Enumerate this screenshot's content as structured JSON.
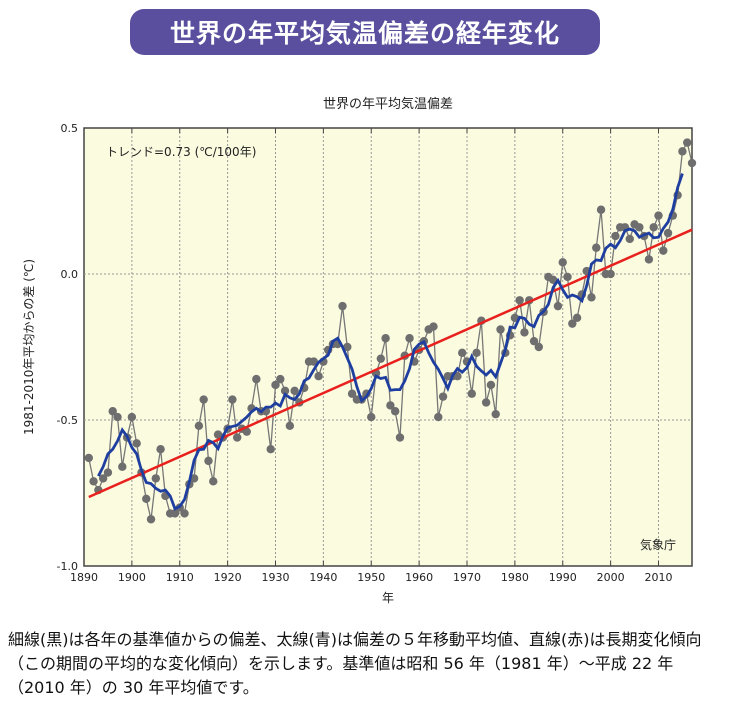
{
  "banner_title": "世界の年平均気温偏差の経年変化",
  "chart_data": {
    "type": "line",
    "title": "世界の年平均気温偏差",
    "xlabel": "年",
    "ylabel": "1981-2010年平均からの差 (℃)",
    "xlim": [
      1890,
      2017
    ],
    "ylim": [
      -1.0,
      0.5
    ],
    "xticks": [
      "1890",
      "1900",
      "1910",
      "1920",
      "1930",
      "1940",
      "1950",
      "1960",
      "1970",
      "1980",
      "1990",
      "2000",
      "2010"
    ],
    "yticks": [
      "0.5",
      "0.0",
      "-0.5",
      "-1.0"
    ],
    "grid": true,
    "annotation": "トレンド=0.73 (℃/100年)",
    "credit": "気象庁",
    "start_year": 1891,
    "values": [
      -0.63,
      -0.71,
      -0.74,
      -0.7,
      -0.68,
      -0.47,
      -0.49,
      -0.66,
      -0.56,
      -0.49,
      -0.58,
      -0.68,
      -0.77,
      -0.84,
      -0.7,
      -0.6,
      -0.76,
      -0.82,
      -0.82,
      -0.8,
      -0.82,
      -0.72,
      -0.7,
      -0.52,
      -0.43,
      -0.64,
      -0.71,
      -0.55,
      -0.56,
      -0.53,
      -0.43,
      -0.56,
      -0.53,
      -0.54,
      -0.46,
      -0.36,
      -0.47,
      -0.47,
      -0.6,
      -0.38,
      -0.36,
      -0.4,
      -0.52,
      -0.4,
      -0.44,
      -0.39,
      -0.3,
      -0.3,
      -0.35,
      -0.3,
      -0.26,
      -0.24,
      -0.24,
      -0.11,
      -0.25,
      -0.41,
      -0.43,
      -0.43,
      -0.41,
      -0.49,
      -0.34,
      -0.29,
      -0.22,
      -0.45,
      -0.47,
      -0.56,
      -0.28,
      -0.22,
      -0.3,
      -0.26,
      -0.23,
      -0.19,
      -0.18,
      -0.49,
      -0.42,
      -0.35,
      -0.35,
      -0.35,
      -0.27,
      -0.3,
      -0.41,
      -0.27,
      -0.16,
      -0.44,
      -0.38,
      -0.48,
      -0.19,
      -0.27,
      -0.21,
      -0.15,
      -0.09,
      -0.2,
      -0.09,
      -0.23,
      -0.25,
      -0.13,
      -0.01,
      -0.02,
      -0.11,
      0.04,
      -0.01,
      -0.17,
      -0.15,
      -0.07,
      0.01,
      -0.08,
      0.09,
      0.22,
      0.0,
      0.0,
      0.13,
      0.16,
      0.16,
      0.12,
      0.17,
      0.16,
      0.13,
      0.05,
      0.16,
      0.2,
      0.08,
      0.14,
      0.2,
      0.27,
      0.42,
      0.45,
      0.38
    ],
    "series_colors": {
      "annual": "#6e6e6e",
      "moving_average": "#1f3fa0",
      "trend": "#e8201e"
    },
    "background": "#fbfbe0"
  },
  "caption": "細線(黒)は各年の基準値からの偏差、太線(青)は偏差の５年移動平均値、直線(赤)は長期変化傾向（この期間の平均的な変化傾向）を示します。基準値は昭和 56 年（1981 年）～平成 22 年（2010 年）の 30 年平均値です。"
}
